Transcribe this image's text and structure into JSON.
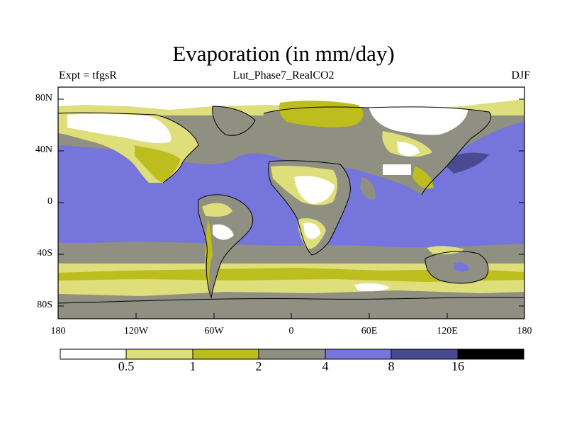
{
  "title": "Evaporation (in mm/day)",
  "subtitle_left": "Expt = tfgsR",
  "subtitle_center": "Lut_Phase7_RealCO2",
  "subtitle_right": "DJF",
  "y_ticks": [
    "80N",
    "40N",
    "0",
    "40S",
    "80S"
  ],
  "x_ticks": [
    "180",
    "120W",
    "60W",
    "0",
    "60E",
    "120E",
    "180"
  ],
  "colorbar": {
    "labels": [
      "0.5",
      "1",
      "2",
      "4",
      "8",
      "16"
    ],
    "colors": [
      "#ffffff",
      "#dede7a",
      "#bdbd1e",
      "#8f8f82",
      "#7575dc",
      "#4a4a92",
      "#000000"
    ]
  },
  "colors": {
    "ocean": "#7575dc",
    "deep": "#4a4a92",
    "grey": "#8f8f82",
    "olive": "#bdbd1e",
    "pale": "#dede7a",
    "white": "#ffffff"
  }
}
